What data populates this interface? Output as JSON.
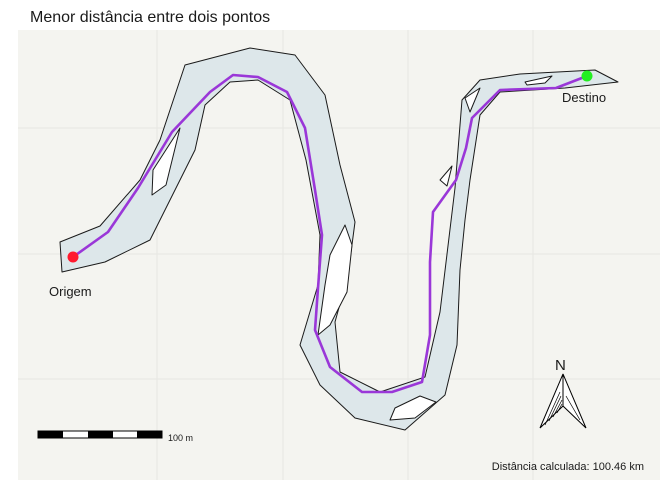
{
  "title": "Menor distância entre dois pontos",
  "origin": {
    "label": "Origem",
    "color": "#ff1a2e"
  },
  "destination": {
    "label": "Destino",
    "color": "#22ee22"
  },
  "route": {
    "color": "#9a37d8"
  },
  "river": {
    "fill": "#dde7ea",
    "stroke": "#1a1a1a"
  },
  "scale_bar": {
    "label": "100 m"
  },
  "north_arrow": {
    "label": "N",
    "icon": "north-arrow-icon"
  },
  "caption": "Distância calculada: 100.46 km"
}
